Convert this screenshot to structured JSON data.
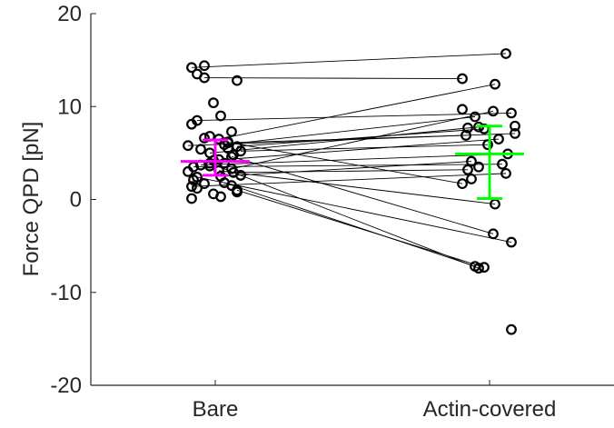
{
  "chart_data": {
    "type": "scatter",
    "ylabel": "Force QPD [pN]",
    "xlabel": "",
    "ylim": [
      -20,
      20
    ],
    "yticks": [
      -20,
      -10,
      0,
      10,
      20
    ],
    "categories": [
      "Bare",
      "Actin-covered"
    ],
    "grid": false,
    "pairs": [
      [
        14.2,
        15.7
      ],
      [
        13.1,
        13.0
      ],
      [
        6.5,
        12.4
      ],
      [
        3.3,
        9.5
      ],
      [
        8.5,
        9.3
      ],
      [
        5.9,
        8.9
      ],
      [
        5.0,
        7.8
      ],
      [
        5.7,
        7.6
      ],
      [
        5.8,
        7.1
      ],
      [
        6.1,
        6.9
      ],
      [
        4.2,
        6.5
      ],
      [
        5.2,
        5.9
      ],
      [
        3.7,
        4.9
      ],
      [
        2.5,
        4.1
      ],
      [
        3.5,
        3.8
      ],
      [
        2.9,
        3.2
      ],
      [
        1.4,
        2.8
      ],
      [
        6.6,
        1.7
      ],
      [
        3.1,
        -0.5
      ],
      [
        4.6,
        -3.7
      ],
      [
        2.4,
        -4.6
      ],
      [
        1.8,
        -7.2
      ],
      [
        3.9,
        -7.4
      ],
      [
        1.0,
        -7.3
      ]
    ],
    "unpaired": {
      "Bare": [
        14.4,
        13.5,
        12.8,
        10.4,
        9.0,
        8.1,
        7.3,
        6.8,
        6.2,
        5.4,
        4.8,
        4.3,
        3.9,
        3.0,
        2.6,
        2.1,
        1.7,
        1.2,
        0.8,
        0.6,
        0.3,
        0.1,
        1.5,
        3.6,
        5.5
      ],
      "Actin-covered": [
        9.7,
        7.9,
        7.7,
        3.5,
        2.2,
        -14.0
      ]
    },
    "summary": [
      {
        "category": "Bare",
        "mean": 4.1,
        "lower": 2.6,
        "upper": 6.4,
        "color": "#ff00ff"
      },
      {
        "category": "Actin-covered",
        "mean": 4.9,
        "lower": 0.1,
        "upper": 7.9,
        "color": "#00ff00"
      }
    ],
    "marker_color": "#000000",
    "line_color": "#000000"
  }
}
